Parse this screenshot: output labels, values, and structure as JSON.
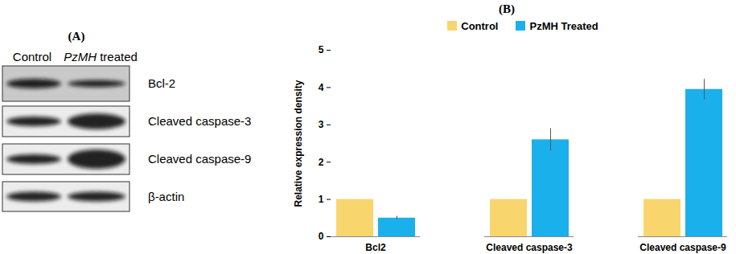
{
  "blot": {
    "label": "(A)",
    "lanes": [
      "Control",
      "PzMH treated"
    ],
    "proteins": [
      "Bcl-2",
      "Cleaved caspase-3",
      "Cleaved caspase-9",
      "β-actin"
    ]
  },
  "chart_data": {
    "type": "bar",
    "title": "(B)",
    "y_label": "Relative expression density",
    "categories": [
      "Bcl2",
      "Cleaved caspase-3",
      "Cleaved caspase-9"
    ],
    "series": [
      {
        "name": "Control",
        "color": "#f9d56e",
        "values": [
          1,
          1,
          1
        ]
      },
      {
        "name": "PzMH Treated",
        "color": "#1ab0ec",
        "values": [
          0.5,
          2.6,
          3.95
        ],
        "errors": [
          0.05,
          0.3,
          0.27
        ]
      }
    ],
    "ylim": [
      0,
      5
    ],
    "yticks": [
      0,
      1,
      2,
      3,
      4,
      5
    ],
    "grid": false,
    "legend": "top"
  }
}
